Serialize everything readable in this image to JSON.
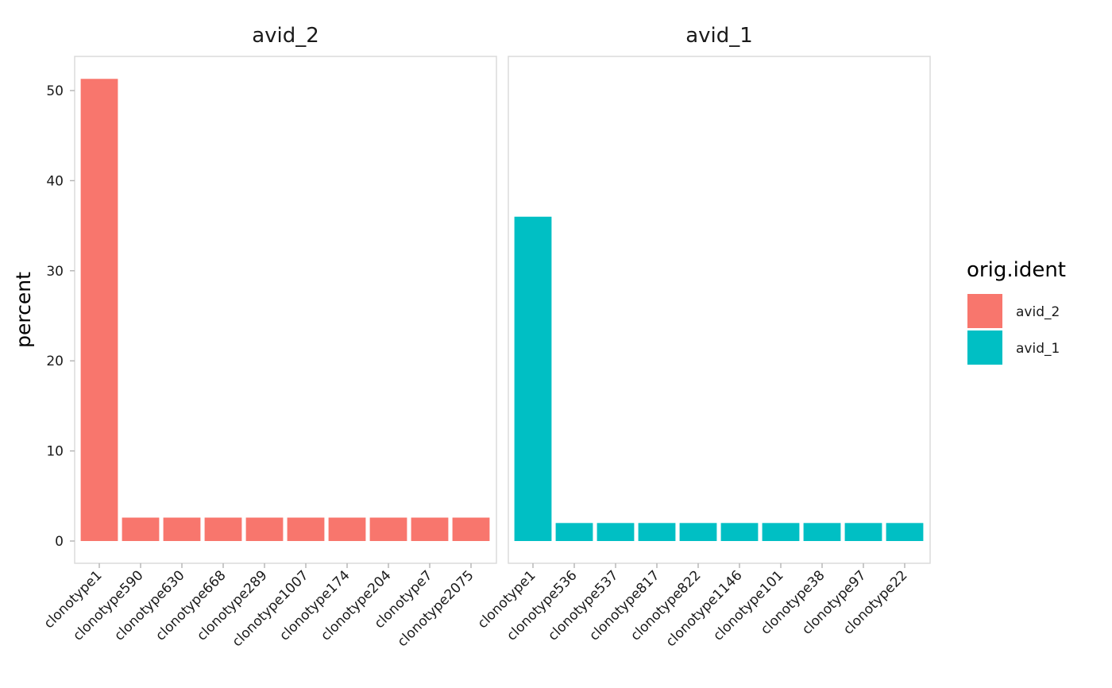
{
  "chart_data": {
    "type": "bar",
    "ylabel": "percent",
    "ylim": [
      0,
      53
    ],
    "yticks": [
      0,
      10,
      20,
      30,
      40,
      50
    ],
    "grid": false,
    "legend": {
      "title": "orig.ident",
      "placement": "right",
      "entries": [
        {
          "label": "avid_2",
          "color": "#F8766D"
        },
        {
          "label": "avid_1",
          "color": "#00BFC4"
        }
      ]
    },
    "facets": [
      {
        "title": "avid_2",
        "color": "#F8766D",
        "categories": [
          "clonotype1",
          "clonotype590",
          "clonotype630",
          "clonotype668",
          "clonotype289",
          "clonotype1007",
          "clonotype174",
          "clonotype204",
          "clonotype7",
          "clonotype2075"
        ],
        "values": [
          51.3,
          2.6,
          2.6,
          2.6,
          2.6,
          2.6,
          2.6,
          2.6,
          2.6,
          2.6
        ]
      },
      {
        "title": "avid_1",
        "color": "#00BFC4",
        "categories": [
          "clonotype1",
          "clonotype536",
          "clonotype537",
          "clonotype817",
          "clonotype822",
          "clonotype1146",
          "clonotype101",
          "clonotype38",
          "clonotype97",
          "clonotype22"
        ],
        "values": [
          36.0,
          2.0,
          2.0,
          2.0,
          2.0,
          2.0,
          2.0,
          2.0,
          2.0,
          2.0
        ]
      }
    ]
  }
}
